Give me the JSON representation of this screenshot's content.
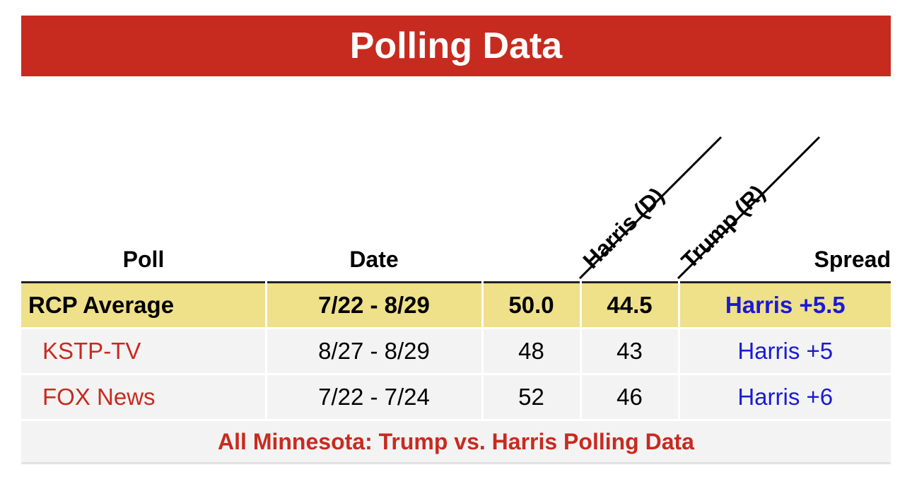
{
  "title": "Polling Data",
  "headers": {
    "poll": "Poll",
    "date": "Date",
    "candidate_d": "Harris (D)",
    "candidate_r": "Trump (R)",
    "spread": "Spread"
  },
  "average": {
    "poll": "RCP Average",
    "date": "7/22 - 8/29",
    "harris": "50.0",
    "trump": "44.5",
    "spread": "Harris +5.5"
  },
  "polls": [
    {
      "poll": "KSTP-TV",
      "date": "8/27 - 8/29",
      "harris": "48",
      "trump": "43",
      "spread": "Harris +5"
    },
    {
      "poll": "FOX News",
      "date": "7/22 - 7/24",
      "harris": "52",
      "trump": "46",
      "spread": "Harris +6"
    }
  ],
  "footer_link": "All Minnesota: Trump vs. Harris Polling Data",
  "colors": {
    "title_bg": "#c72b1f",
    "average_bg": "#efe08a",
    "row_bg": "#f3f3f3",
    "poll_name": "#c72b1f",
    "spread": "#1a1ad6"
  }
}
